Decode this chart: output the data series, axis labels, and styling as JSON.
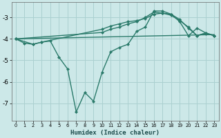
{
  "xlabel": "Humidex (Indice chaleur)",
  "bg_color": "#cce8e8",
  "grid_color": "#aad0d0",
  "line_color": "#2a7a6a",
  "xlim": [
    -0.5,
    23.5
  ],
  "ylim": [
    -7.8,
    -2.3
  ],
  "yticks": [
    -7,
    -6,
    -5,
    -4,
    -3
  ],
  "xticks": [
    0,
    1,
    2,
    3,
    4,
    5,
    6,
    7,
    8,
    9,
    10,
    11,
    12,
    13,
    14,
    15,
    16,
    17,
    18,
    19,
    20,
    21,
    22,
    23
  ],
  "series": [
    {
      "x": [
        0,
        23
      ],
      "y": [
        -4.0,
        -3.8
      ],
      "marker": null,
      "markersize": 0,
      "linewidth": 1.0
    },
    {
      "x": [
        0,
        2,
        3,
        10,
        11,
        12,
        13,
        14,
        15,
        16,
        17,
        18,
        19,
        20,
        21,
        22,
        23
      ],
      "y": [
        -4.0,
        -4.25,
        -4.15,
        -3.55,
        -3.4,
        -3.3,
        -3.2,
        -3.15,
        -3.05,
        -2.85,
        -2.8,
        -2.85,
        -3.1,
        -3.5,
        -3.85,
        -3.75,
        -3.85
      ],
      "marker": "D",
      "markersize": 2.2,
      "linewidth": 1.0
    },
    {
      "x": [
        0,
        10,
        11,
        12,
        13,
        14,
        15,
        16,
        17,
        18,
        19,
        20,
        21,
        22,
        23
      ],
      "y": [
        -4.0,
        -3.7,
        -3.55,
        -3.45,
        -3.3,
        -3.2,
        -3.0,
        -2.75,
        -2.8,
        -2.9,
        -3.15,
        -3.45,
        -3.85,
        -3.72,
        -3.85
      ],
      "marker": "D",
      "markersize": 2.2,
      "linewidth": 1.0
    },
    {
      "x": [
        0,
        1,
        2,
        3,
        4,
        5,
        6,
        7,
        8,
        9,
        10,
        11,
        12,
        13,
        14,
        15,
        16,
        17,
        18,
        19,
        20,
        21,
        22,
        23
      ],
      "y": [
        -4.0,
        -4.2,
        -4.25,
        -4.15,
        -4.1,
        -4.85,
        -5.4,
        -7.4,
        -6.5,
        -6.9,
        -5.55,
        -4.6,
        -4.4,
        -4.25,
        -3.65,
        -3.45,
        -2.7,
        -2.7,
        -2.85,
        -3.2,
        -3.85,
        -3.5,
        -3.72,
        -3.85
      ],
      "marker": "D",
      "markersize": 2.2,
      "linewidth": 1.0
    }
  ]
}
